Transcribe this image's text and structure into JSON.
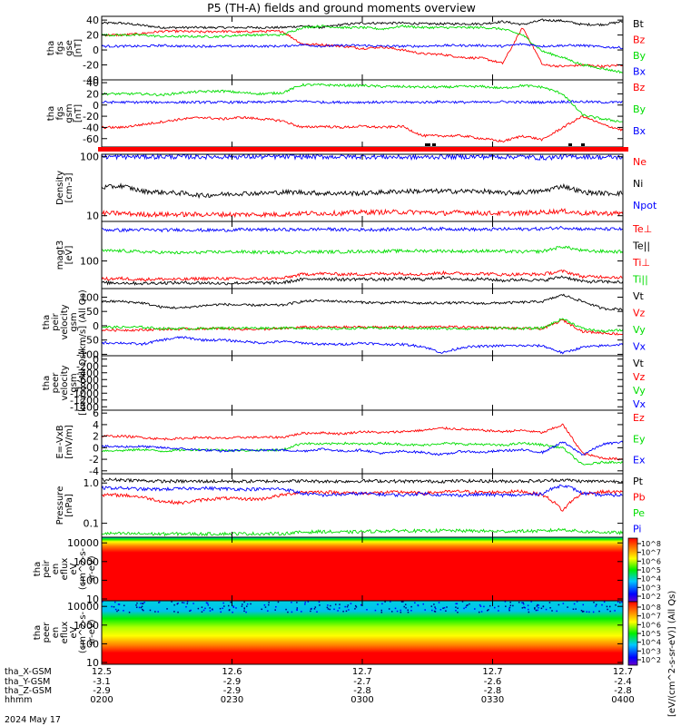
{
  "title": "P5 (TH-A) fields and ground moments overview",
  "date_label": "2024 May 17",
  "colors": {
    "black": "#000000",
    "red": "#ff0000",
    "green": "#00dd00",
    "blue": "#0000ff"
  },
  "ephemeris": {
    "row_labels": [
      "tha_X-GSM",
      "tha_Y-GSM",
      "tha_Z-GSM",
      "hhmm"
    ],
    "columns": [
      [
        "12.5",
        "-3.1",
        "-2.9",
        "0200"
      ],
      [
        "12.6",
        "-2.9",
        "-2.9",
        "0230"
      ],
      [
        "12.7",
        "-2.7",
        "-2.8",
        "0300"
      ],
      [
        "12.7",
        "-2.6",
        "-2.8",
        "0330"
      ],
      [
        "12.7",
        "-2.4",
        "-2.8",
        "0400"
      ]
    ]
  },
  "colorbar": {
    "label": "[eV/(cm^2-s-sr-eV)] (All Qs)",
    "ticks_top": [
      "10^8",
      "10^7",
      "10^6",
      "10^5",
      "10^4",
      "10^3",
      "10^2"
    ],
    "ticks_bottom": [
      "10^8",
      "10^7",
      "10^6",
      "10^5",
      "10^4",
      "10^3",
      "10^2"
    ]
  },
  "chart_data": [
    {
      "type": "line",
      "name": "panel-fgs-gse",
      "ylabel": [
        "tha",
        "fgs",
        "gse",
        "[nT]"
      ],
      "ylim": [
        -40,
        45
      ],
      "yticks": [
        "40",
        "20",
        "0",
        "-20",
        "-40"
      ],
      "ytick_values": [
        40,
        20,
        0,
        -20,
        -40
      ],
      "legend": [
        "Bt",
        "Bz",
        "By",
        "Bx"
      ],
      "series": [
        {
          "name": "Bt",
          "color": "#000000",
          "values": [
            36,
            36,
            33,
            30,
            30,
            30,
            30,
            30,
            30,
            30,
            32,
            30,
            34,
            36,
            36,
            36,
            35,
            35,
            35,
            35,
            38,
            34,
            40,
            39,
            34,
            34,
            38
          ]
        },
        {
          "name": "Bz",
          "color": "#ff0000",
          "values": [
            20,
            20,
            22,
            25,
            25,
            24,
            25,
            24,
            25,
            25,
            8,
            7,
            5,
            2,
            4,
            0,
            -5,
            -6,
            -10,
            -11,
            -18,
            30,
            -20,
            -22,
            -20,
            -22,
            -20
          ]
        },
        {
          "name": "By",
          "color": "#00dd00",
          "values": [
            20,
            20,
            20,
            18,
            18,
            18,
            18,
            20,
            20,
            20,
            30,
            32,
            30,
            30,
            28,
            32,
            30,
            30,
            30,
            30,
            28,
            20,
            -2,
            -10,
            -20,
            -25,
            -30
          ]
        },
        {
          "name": "Bx",
          "color": "#0000ff",
          "values": [
            5,
            5,
            5,
            6,
            5,
            5,
            5,
            5,
            5,
            5,
            7,
            5,
            6,
            6,
            5,
            5,
            5,
            6,
            6,
            6,
            5,
            8,
            5,
            6,
            6,
            4,
            3
          ]
        }
      ]
    },
    {
      "type": "line",
      "name": "panel-fgs-gsm",
      "ylabel": [
        "tha",
        "fgs",
        "gsm",
        "[nT]"
      ],
      "ylim": [
        -75,
        45
      ],
      "yticks": [
        "40",
        "20",
        "0",
        "-20",
        "-40",
        "-60"
      ],
      "ytick_values": [
        40,
        20,
        0,
        -20,
        -40,
        -60
      ],
      "legend": [
        "Bz",
        "By",
        "Bx"
      ],
      "series": [
        {
          "name": "Bz",
          "color": "#00dd00",
          "values": [
            20,
            20,
            20,
            18,
            22,
            24,
            25,
            22,
            20,
            22,
            36,
            36,
            35,
            35,
            33,
            33,
            32,
            32,
            33,
            33,
            30,
            35,
            32,
            20,
            -18,
            -25,
            -30
          ]
        },
        {
          "name": "By",
          "color": "#0000ff",
          "values": [
            5,
            5,
            5,
            5,
            5,
            5,
            5,
            5,
            5,
            6,
            7,
            5,
            5,
            5,
            5,
            5,
            5,
            6,
            5,
            5,
            6,
            5,
            5,
            6,
            6,
            5,
            5
          ]
        },
        {
          "name": "Bx",
          "color": "#ff0000",
          "values": [
            -40,
            -40,
            -35,
            -30,
            -25,
            -22,
            -25,
            -22,
            -25,
            -28,
            -40,
            -38,
            -40,
            -38,
            -40,
            -38,
            -55,
            -55,
            -55,
            -60,
            -65,
            -55,
            -62,
            -40,
            -20,
            -35,
            -45
          ]
        }
      ]
    },
    {
      "type": "line",
      "name": "panel-density",
      "yscale": "log",
      "ylabel": [
        "Density",
        "[cm-3]"
      ],
      "ylim": [
        8,
        110
      ],
      "yticks": [
        "100",
        "10"
      ],
      "ytick_values": [
        100,
        10
      ],
      "legend": [
        "Ne",
        "Ni",
        "Npot"
      ],
      "series": [
        {
          "name": "Ne",
          "color": "#ff0000",
          "values": [
            11,
            11,
            10.5,
            10.5,
            10.5,
            10.5,
            10.5,
            10.5,
            10.5,
            10.5,
            11,
            11,
            11,
            11.5,
            11.5,
            11.5,
            11.5,
            11,
            11.5,
            11,
            11,
            11,
            11.5,
            12,
            11,
            11,
            11
          ]
        },
        {
          "name": "Ni",
          "color": "#000000",
          "values": [
            30,
            32,
            26,
            25,
            24,
            22,
            23,
            24,
            24,
            25,
            25,
            24,
            24,
            24,
            25,
            26,
            26,
            26,
            26,
            26,
            24,
            25,
            26,
            32,
            25,
            24,
            24
          ]
        },
        {
          "name": "Npot",
          "color": "#0000ff",
          "values": [
            100,
            100,
            100,
            100,
            100,
            100,
            100,
            100,
            100,
            100,
            100,
            100,
            100,
            100,
            100,
            98,
            98,
            100,
            100,
            100,
            100,
            100,
            95,
            100,
            100,
            98,
            98
          ]
        }
      ]
    },
    {
      "type": "line",
      "name": "panel-temperature",
      "yscale": "log",
      "ylabel": [
        "magt3",
        "[eV]"
      ],
      "ylim": [
        20,
        1000
      ],
      "yticks": [
        "100"
      ],
      "ytick_values": [
        100
      ],
      "legend": [
        "Te⊥",
        "Te||",
        "Ti⊥",
        "Ti||"
      ],
      "series": [
        {
          "name": "Te⊥",
          "color": "#0000ff",
          "values": [
            620,
            600,
            620,
            600,
            620,
            600,
            600,
            620,
            620,
            620,
            620,
            640,
            620,
            620,
            620,
            650,
            650,
            650,
            640,
            620,
            640,
            640,
            650,
            700,
            640,
            640,
            640
          ]
        },
        {
          "name": "Te||",
          "color": "#00dd00",
          "values": [
            180,
            180,
            170,
            165,
            160,
            165,
            170,
            170,
            165,
            165,
            170,
            170,
            170,
            175,
            175,
            180,
            180,
            180,
            175,
            180,
            175,
            170,
            175,
            230,
            180,
            175,
            170
          ]
        },
        {
          "name": "Ti⊥",
          "color": "#ff0000",
          "values": [
            35,
            36,
            34,
            35,
            34,
            36,
            36,
            35,
            36,
            36,
            46,
            48,
            46,
            46,
            48,
            48,
            46,
            50,
            48,
            48,
            45,
            46,
            46,
            55,
            40,
            40,
            38
          ]
        },
        {
          "name": "Ti||",
          "color": "#000000",
          "values": [
            28,
            28,
            27,
            28,
            28,
            28,
            27,
            28,
            28,
            28,
            34,
            36,
            34,
            35,
            34,
            36,
            34,
            38,
            34,
            35,
            32,
            34,
            32,
            40,
            30,
            30,
            29
          ]
        }
      ]
    },
    {
      "type": "line",
      "name": "panel-peir-velocity",
      "ylabel": [
        "tha",
        "peir",
        "velocity",
        "gsm",
        "[km/s] (All Qs)"
      ],
      "ylim": [
        -105,
        130
      ],
      "yticks": [
        "100",
        "50",
        "0",
        "-50",
        "-100"
      ],
      "ytick_values": [
        100,
        50,
        0,
        -50,
        -100
      ],
      "legend": [
        "Vt",
        "Vz",
        "Vy",
        "Vx"
      ],
      "series": [
        {
          "name": "Vt",
          "color": "#000000",
          "values": [
            85,
            85,
            80,
            65,
            62,
            70,
            75,
            72,
            72,
            72,
            85,
            88,
            85,
            82,
            80,
            82,
            78,
            80,
            80,
            78,
            80,
            82,
            85,
            108,
            85,
            60,
            58
          ]
        },
        {
          "name": "Vz",
          "color": "#ff0000",
          "values": [
            -15,
            -15,
            -15,
            -12,
            -12,
            -10,
            -10,
            -12,
            -12,
            -10,
            -5,
            -5,
            -5,
            -5,
            -5,
            -5,
            -5,
            -3,
            -5,
            -5,
            -8,
            -10,
            -10,
            20,
            -20,
            -25,
            -30
          ]
        },
        {
          "name": "Vy",
          "color": "#00dd00",
          "values": [
            -5,
            -5,
            -5,
            -10,
            -10,
            -10,
            -8,
            -8,
            -8,
            -8,
            -8,
            -10,
            -10,
            -8,
            -8,
            -8,
            -10,
            -10,
            -10,
            -10,
            -8,
            -10,
            -8,
            25,
            -10,
            -20,
            -15
          ]
        },
        {
          "name": "Vx",
          "color": "#0000ff",
          "values": [
            -60,
            -60,
            -65,
            -50,
            -40,
            -50,
            -50,
            -55,
            -60,
            -55,
            -60,
            -65,
            -65,
            -60,
            -65,
            -65,
            -72,
            -95,
            -75,
            -72,
            -70,
            -70,
            -70,
            -95,
            -75,
            -70,
            -65
          ]
        }
      ]
    },
    {
      "type": "line",
      "name": "panel-peer-velocity",
      "ylabel": [
        "tha",
        "peer",
        "velocity",
        "gsm",
        "[km/s] (All Qs)"
      ],
      "ylim": [
        -1500,
        100
      ],
      "yticks": [
        "0",
        "-200",
        "-400",
        "-600",
        "-800",
        "-1000",
        "-1200",
        "-1400"
      ],
      "ytick_values": [
        0,
        -200,
        -400,
        -600,
        -800,
        -1000,
        -1200,
        -1400
      ],
      "legend": [
        "Vt",
        "Vz",
        "Vy",
        "Vx"
      ],
      "series": []
    },
    {
      "type": "line",
      "name": "panel-efield",
      "ylabel": [
        "E=-VxB",
        "[mV/m]"
      ],
      "ylim": [
        -4.5,
        6.5
      ],
      "yticks": [
        "6",
        "4",
        "2",
        "0",
        "-2",
        "-4"
      ],
      "ytick_values": [
        6,
        4,
        2,
        0,
        -2,
        -4
      ],
      "legend": [
        "Ez",
        "Ey",
        "Ex"
      ],
      "series": [
        {
          "name": "Ez",
          "color": "#ff0000",
          "values": [
            2,
            2,
            1.8,
            1.5,
            1.6,
            1.8,
            1.6,
            1.8,
            1.8,
            1.8,
            2.5,
            2.6,
            2.4,
            2.8,
            2.6,
            2.8,
            3,
            3.4,
            3.2,
            3,
            2.8,
            3,
            2.6,
            4,
            -1,
            -1.8,
            -2
          ]
        },
        {
          "name": "Ey",
          "color": "#00dd00",
          "values": [
            -0.5,
            -0.5,
            -0.3,
            -0.6,
            -0.4,
            -0.3,
            -0.4,
            -0.5,
            -0.4,
            -0.4,
            0.8,
            0.6,
            0.8,
            0.6,
            0.8,
            0.6,
            0.4,
            0.8,
            0.6,
            0.6,
            0.4,
            0.8,
            0.5,
            0,
            -3,
            -2.5,
            -2.5
          ]
        },
        {
          "name": "Ex",
          "color": "#0000ff",
          "values": [
            0.2,
            0.2,
            0.2,
            0,
            -0.2,
            -0.4,
            -0.6,
            -0.4,
            -0.4,
            -0.4,
            -0.6,
            -0.2,
            -0.6,
            -0.4,
            -1,
            -0.6,
            -0.8,
            -1.2,
            -0.6,
            -0.8,
            -0.5,
            -0.4,
            -0.8,
            1,
            -1.2,
            0.6,
            1
          ]
        }
      ]
    },
    {
      "type": "line",
      "name": "panel-pressure",
      "yscale": "log",
      "ylabel": [
        "Pressure",
        "[nPa]"
      ],
      "ylim": [
        0.045,
        1.7
      ],
      "yticks": [
        "1.0",
        "0.1"
      ],
      "ytick_values": [
        1.0,
        0.1
      ],
      "legend": [
        "Pt",
        "Pb",
        "Pe",
        "Pi"
      ],
      "series": [
        {
          "name": "Pt",
          "color": "#000000",
          "values": [
            1.2,
            1.2,
            1.15,
            1.1,
            1.1,
            1.1,
            1.1,
            1.1,
            1.1,
            1.12,
            1.12,
            1.1,
            1.1,
            1.12,
            1.12,
            1.1,
            1.1,
            1.1,
            1.12,
            1.12,
            1.1,
            1.12,
            1.12,
            1.2,
            1.1,
            1.1,
            1.1
          ]
        },
        {
          "name": "Pb",
          "color": "#ff0000",
          "values": [
            0.5,
            0.5,
            0.45,
            0.35,
            0.32,
            0.38,
            0.42,
            0.4,
            0.4,
            0.5,
            0.6,
            0.6,
            0.58,
            0.55,
            0.58,
            0.6,
            0.55,
            0.6,
            0.62,
            0.58,
            0.6,
            0.62,
            0.5,
            0.2,
            0.55,
            0.6,
            0.6
          ]
        },
        {
          "name": "Pe",
          "color": "#00dd00",
          "values": [
            0.056,
            0.055,
            0.055,
            0.054,
            0.055,
            0.054,
            0.055,
            0.055,
            0.055,
            0.055,
            0.06,
            0.062,
            0.06,
            0.062,
            0.064,
            0.066,
            0.064,
            0.066,
            0.065,
            0.064,
            0.063,
            0.064,
            0.064,
            0.07,
            0.062,
            0.06,
            0.058
          ]
        },
        {
          "name": "Pi",
          "color": "#0000ff",
          "values": [
            0.75,
            0.75,
            0.7,
            0.7,
            0.72,
            0.75,
            0.72,
            0.7,
            0.7,
            0.72,
            0.55,
            0.5,
            0.52,
            0.55,
            0.52,
            0.5,
            0.55,
            0.5,
            0.5,
            0.52,
            0.5,
            0.5,
            0.55,
            0.9,
            0.55,
            0.5,
            0.5
          ]
        }
      ]
    },
    {
      "type": "heatmap",
      "name": "panel-peir-eflux",
      "yscale": "log",
      "ylabel": [
        "tha",
        "peir",
        "en",
        "eflux",
        "eV",
        "(cm^2-s-",
        "sr-eV)"
      ],
      "ylim": [
        8,
        20000
      ],
      "yticks": [
        "10000",
        "1000",
        "100",
        "10"
      ],
      "ytick_values": [
        10000,
        1000,
        100,
        10
      ],
      "z_range": [
        "10^2",
        "10^8"
      ]
    },
    {
      "type": "heatmap",
      "name": "panel-peer-eflux",
      "yscale": "log",
      "ylabel": [
        "tha",
        "peer",
        "en",
        "eflux",
        "eV",
        "(cm^2-s-",
        "sr-eV)"
      ],
      "ylim": [
        8,
        20000
      ],
      "yticks": [
        "10000",
        "1000",
        "100",
        "10"
      ],
      "ytick_values": [
        10000,
        1000,
        100,
        10
      ],
      "z_range": [
        "10^2",
        "10^8"
      ]
    }
  ]
}
